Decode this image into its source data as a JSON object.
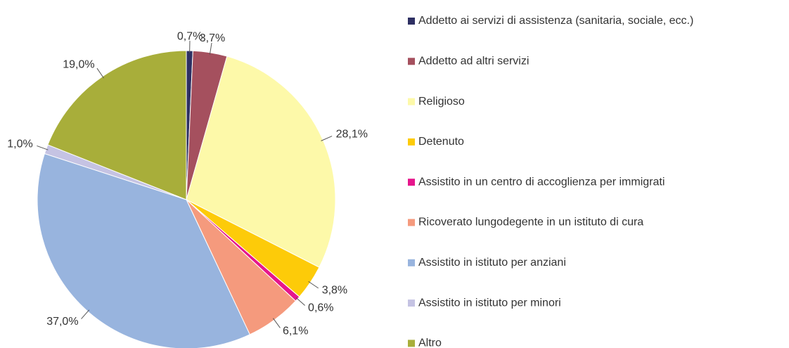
{
  "chart_data": {
    "type": "pie",
    "categories": [
      "Addetto ai servizi di assistenza (sanitaria, sociale, ecc.)",
      "Addetto ad altri servizi",
      "Religioso",
      "Detenuto",
      "Assistito in un centro di accoglienza per immigrati",
      "Ricoverato lungodegente in un istituto di cura",
      "Assistito in istituto per anziani",
      "Assistito in istituto per minori",
      "Altro"
    ],
    "values": [
      0.7,
      3.7,
      28.1,
      3.8,
      0.6,
      6.1,
      37.0,
      1.0,
      19.0
    ],
    "value_labels": [
      "0,7%",
      "3,7%",
      "28,1%",
      "3,8%",
      "0,6%",
      "6,1%",
      "37,0%",
      "1,0%",
      "19,0%"
    ],
    "colors": [
      "#2e3063",
      "#a5505e",
      "#fdf9a9",
      "#fdcb09",
      "#e6168c",
      "#f59a7d",
      "#98b4de",
      "#c5c3e3",
      "#a8ae3a"
    ],
    "legend": "right"
  }
}
